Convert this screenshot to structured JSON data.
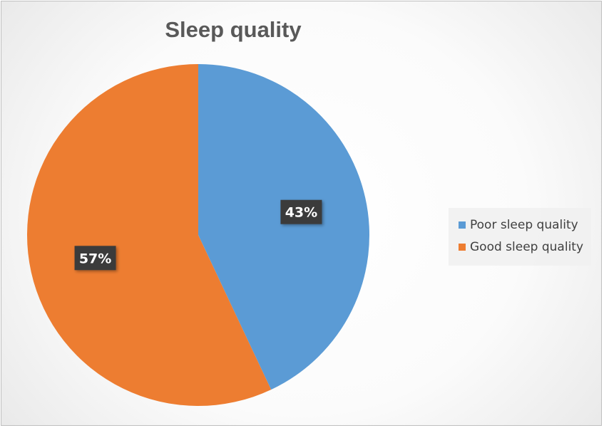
{
  "chart_data": {
    "type": "pie",
    "title": "Sleep quality",
    "categories": [
      "Poor sleep quality",
      "Good sleep quality"
    ],
    "values": [
      43,
      57
    ],
    "data_labels": [
      "43%",
      "57%"
    ],
    "colors": [
      "#5B9BD5",
      "#ED7D31"
    ],
    "legend_position": "right"
  }
}
